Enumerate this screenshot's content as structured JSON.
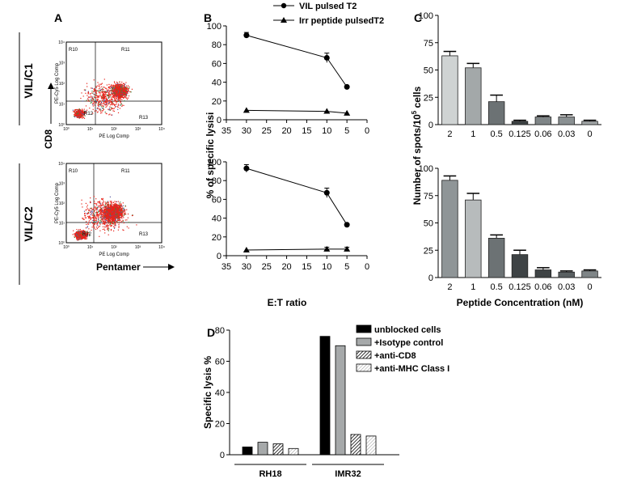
{
  "panel_labels": {
    "A": "A",
    "B": "B",
    "C": "C",
    "D": "D"
  },
  "panel_a": {
    "row_labels": [
      "VIL/C1",
      "VIL/C2"
    ],
    "y_label": "CD8",
    "x_label": "Pentamer",
    "plot_text": {
      "y_axis": "PE-Cy5 Log Comp",
      "x_axis": "PE Log Comp",
      "gates": [
        "R10",
        "R11",
        "R12",
        "R13"
      ],
      "ticks": [
        "10⁰",
        "10¹",
        "10²",
        "10³",
        "10⁴"
      ]
    },
    "dot_color": "#e8231a"
  },
  "chart_data": [
    {
      "id": "B-top",
      "type": "line",
      "xlim": [
        35,
        0
      ],
      "ylim": [
        0,
        100
      ],
      "x": [
        30,
        10,
        5
      ],
      "x_ticks": [
        "35",
        "30",
        "25",
        "20",
        "15",
        "10",
        "5",
        "0"
      ],
      "y_ticks": [
        "0",
        "20",
        "40",
        "60",
        "80",
        "100"
      ],
      "series": [
        {
          "name": "VIL pulsed T2",
          "marker": "circle",
          "values": [
            90,
            66,
            35
          ],
          "errors": [
            3,
            5,
            0
          ]
        },
        {
          "name": "Irr peptide pulsedT2",
          "marker": "triangle",
          "values": [
            10,
            9,
            7
          ],
          "errors": [
            0,
            0,
            0
          ]
        }
      ],
      "legend": "top",
      "ylabel": "% of specific lysisi"
    },
    {
      "id": "B-bottom",
      "type": "line",
      "xlim": [
        35,
        0
      ],
      "ylim": [
        0,
        100
      ],
      "x": [
        30,
        10,
        5
      ],
      "x_ticks": [
        "35",
        "30",
        "25",
        "20",
        "15",
        "10",
        "5",
        "0"
      ],
      "y_ticks": [
        "0",
        "20",
        "40",
        "60",
        "80",
        "100"
      ],
      "series": [
        {
          "name": "VIL pulsed T2",
          "marker": "circle",
          "values": [
            93,
            67,
            33
          ],
          "errors": [
            4,
            5,
            0
          ]
        },
        {
          "name": "Irr peptide pulsedT2",
          "marker": "triangle",
          "values": [
            6,
            7,
            7
          ],
          "errors": [
            0,
            2,
            2
          ]
        }
      ],
      "xlabel": "E:T ratio"
    },
    {
      "id": "C-top",
      "type": "bar",
      "ylim": [
        0,
        100
      ],
      "categories": [
        "2",
        "1",
        "0.5",
        "0.125",
        "0.06",
        "0.03",
        "0"
      ],
      "values": [
        63,
        52,
        21,
        3,
        7,
        7,
        3
      ],
      "errors": [
        4,
        4,
        6,
        1,
        1,
        2,
        1
      ],
      "colors": [
        "#cfd3d3",
        "#a3a8a9",
        "#6c7274",
        "#3e4345",
        "#7f8587",
        "#8a9092",
        "#a3a8a9"
      ],
      "y_ticks": [
        "0",
        "25",
        "50",
        "75",
        "100"
      ]
    },
    {
      "id": "C-bottom",
      "type": "bar",
      "ylim": [
        0,
        100
      ],
      "categories": [
        "2",
        "1",
        "0.5",
        "0.125",
        "0.06",
        "0.03",
        "0"
      ],
      "values": [
        89,
        71,
        36,
        21,
        7,
        5,
        6
      ],
      "errors": [
        4,
        6,
        3,
        4,
        2,
        1,
        1
      ],
      "colors": [
        "#8f9597",
        "#b7bbbc",
        "#6c7274",
        "#3e4345",
        "#3e4345",
        "#595f61",
        "#7f8587"
      ],
      "y_ticks": [
        "0",
        "25",
        "50",
        "75",
        "100"
      ],
      "xlabel": "Peptide Concentration (nM)"
    },
    {
      "id": "D",
      "type": "bar",
      "ylim": [
        0,
        80
      ],
      "categories": [
        "RH18",
        "IMR32"
      ],
      "series": [
        {
          "name": "unblocked cells",
          "fill": "black",
          "values": [
            5,
            76
          ]
        },
        {
          "name": "+Isotype control",
          "fill": "gray",
          "values": [
            8,
            70
          ]
        },
        {
          "name": "+anti-CD8",
          "fill": "dense-hatch",
          "values": [
            7,
            13
          ]
        },
        {
          "name": "+anti-MHC Class I",
          "fill": "light-hatch",
          "values": [
            4,
            12
          ]
        }
      ],
      "y_ticks": [
        "0",
        "20",
        "40",
        "60",
        "80"
      ],
      "ylabel": "Specific lysis %",
      "legend": "top-right"
    }
  ],
  "panel_c_ylabel": {
    "main": "Number of spots/10",
    "sup": "5",
    "rest": " cells"
  }
}
